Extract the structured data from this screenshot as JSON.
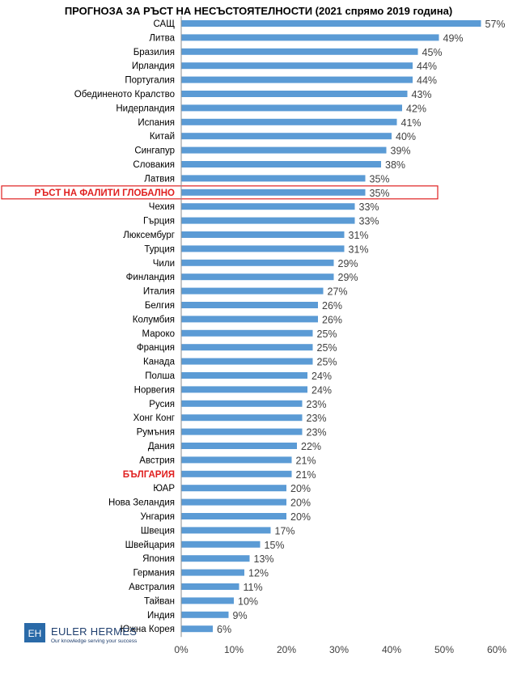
{
  "chart_data": {
    "type": "bar",
    "orientation": "horizontal",
    "title": "ПРОГНОЗА ЗА РЪСТ НА НЕСЪСТОЯТЕЛНОСТИ (2021 спрямо 2019 година)",
    "categories": [
      "САЩ",
      "Литва",
      "Бразилия",
      "Ирландия",
      "Португалия",
      "Обединеното Кралство",
      "Нидерландия",
      "Испания",
      "Китай",
      "Сингапур",
      "Словакия",
      "Латвия",
      "РЪСТ НА ФАЛИТИ ГЛОБАЛНО",
      "Чехия",
      "Гърция",
      "Люксембург",
      "Турция",
      "Чили",
      "Финландия",
      "Италия",
      "Белгия",
      "Колумбия",
      "Мароко",
      "Франция",
      "Канада",
      "Полша",
      "Норвегия",
      "Русия",
      "Хонг Конг",
      "Румъния",
      "Дания",
      "Австрия",
      "БЪЛГАРИЯ",
      "ЮАР",
      "Нова Зеландия",
      "Унгария",
      "Швеция",
      "Швейцария",
      "Япония",
      "Германия",
      "Австралия",
      "Тайван",
      "Индия",
      "Южна Корея"
    ],
    "values": [
      57,
      49,
      45,
      44,
      44,
      43,
      42,
      41,
      40,
      39,
      38,
      35,
      35,
      33,
      33,
      31,
      31,
      29,
      29,
      27,
      26,
      26,
      25,
      25,
      25,
      24,
      24,
      23,
      23,
      23,
      22,
      21,
      21,
      20,
      20,
      20,
      17,
      15,
      13,
      12,
      11,
      10,
      9,
      6
    ],
    "value_labels": [
      "57%",
      "49%",
      "45%",
      "44%",
      "44%",
      "43%",
      "42%",
      "41%",
      "40%",
      "39%",
      "38%",
      "35%",
      "35%",
      "33%",
      "33%",
      "31%",
      "31%",
      "29%",
      "29%",
      "27%",
      "26%",
      "26%",
      "25%",
      "25%",
      "25%",
      "24%",
      "24%",
      "23%",
      "23%",
      "23%",
      "22%",
      "21%",
      "21%",
      "20%",
      "20%",
      "20%",
      "17%",
      "15%",
      "13%",
      "12%",
      "11%",
      "10%",
      "9%",
      "6%"
    ],
    "highlighted": [
      "РЪСТ НА ФАЛИТИ ГЛОБАЛНО",
      "БЪЛГАРИЯ"
    ],
    "boxed": "РЪСТ НА ФАЛИТИ ГЛОБАЛНО",
    "xlim": [
      0,
      60
    ],
    "xticks": [
      "0%",
      "10%",
      "20%",
      "30%",
      "40%",
      "50%",
      "60%"
    ],
    "bar_color": "#5b9bd5",
    "highlight_color": "#e02020",
    "grid": false,
    "legend": "none"
  },
  "logo": {
    "mark": "EH",
    "name": "EULER HERMES",
    "tagline": "Our knowledge serving your success"
  }
}
